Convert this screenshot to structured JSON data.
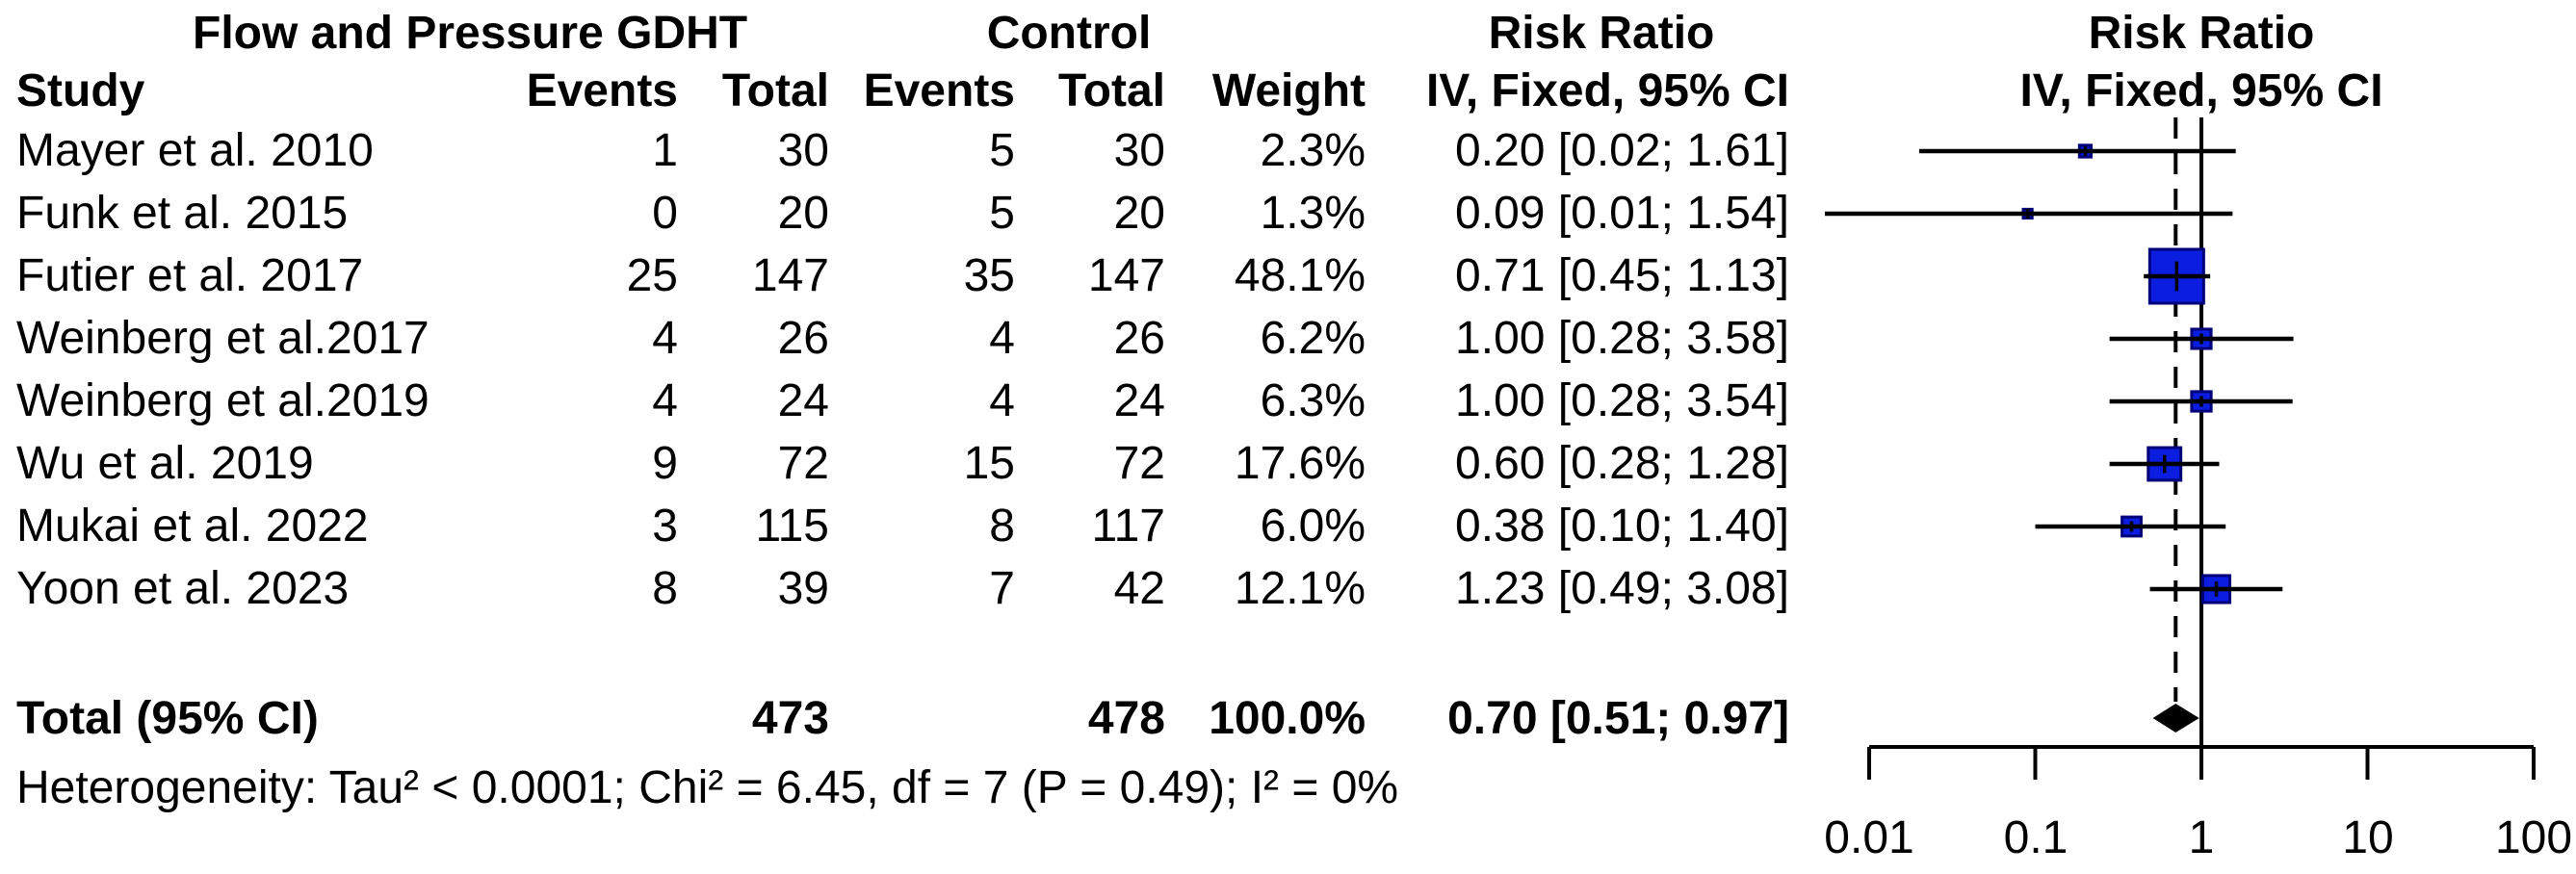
{
  "figure": {
    "columns": {
      "group1_header": "Flow and Pressure GDHT",
      "group2_header": "Control",
      "risk_ratio_header": "Risk Ratio",
      "risk_ratio_plot_header": "Risk Ratio",
      "study": "Study",
      "events1": "Events",
      "total1": "Total",
      "events2": "Events",
      "total2": "Total",
      "weight": "Weight",
      "effect": "IV, Fixed, 95% CI",
      "effect_plot": "IV, Fixed, 95% CI"
    },
    "total_row": {
      "label": "Total (95% CI)",
      "total1": "473",
      "total2": "478",
      "weight": "100.0%",
      "effect": "0.70 [0.51; 0.97]"
    },
    "heterogeneity": "Heterogeneity: Tau² < 0.0001; Chi² = 6.45, df = 7 (P = 0.49); I² = 0%"
  },
  "chart_data": {
    "type": "forest",
    "title": "Risk Ratio IV, Fixed, 95% CI",
    "x_scale": "log10",
    "x_ticks": [
      0.01,
      0.1,
      1,
      10,
      100
    ],
    "x_tick_labels": [
      "0.01",
      "0.1",
      "1",
      "10",
      "100"
    ],
    "null_line": 1,
    "legend_position": "none",
    "studies": [
      {
        "name": "Mayer et al. 2010",
        "events_gdht": 1,
        "total_gdht": 30,
        "events_control": 5,
        "total_control": 30,
        "weight_pct": 2.3,
        "weight_label": "2.3%",
        "rr": 0.2,
        "ci_low": 0.02,
        "ci_high": 1.61,
        "effect_label": "0.20 [0.02; 1.61]",
        "ci_clipped_left": false
      },
      {
        "name": "Funk et al. 2015",
        "events_gdht": 0,
        "total_gdht": 20,
        "events_control": 5,
        "total_control": 20,
        "weight_pct": 1.3,
        "weight_label": "1.3%",
        "rr": 0.09,
        "ci_low": 0.01,
        "ci_high": 1.54,
        "effect_label": "0.09 [0.01; 1.54]",
        "ci_clipped_left": true
      },
      {
        "name": "Futier et al. 2017",
        "events_gdht": 25,
        "total_gdht": 147,
        "events_control": 35,
        "total_control": 147,
        "weight_pct": 48.1,
        "weight_label": "48.1%",
        "rr": 0.71,
        "ci_low": 0.45,
        "ci_high": 1.13,
        "effect_label": "0.71 [0.45; 1.13]",
        "ci_clipped_left": false
      },
      {
        "name": "Weinberg et al.2017",
        "events_gdht": 4,
        "total_gdht": 26,
        "events_control": 4,
        "total_control": 26,
        "weight_pct": 6.2,
        "weight_label": "6.2%",
        "rr": 1.0,
        "ci_low": 0.28,
        "ci_high": 3.58,
        "effect_label": "1.00 [0.28; 3.58]",
        "ci_clipped_left": false
      },
      {
        "name": "Weinberg et al.2019",
        "events_gdht": 4,
        "total_gdht": 24,
        "events_control": 4,
        "total_control": 24,
        "weight_pct": 6.3,
        "weight_label": "6.3%",
        "rr": 1.0,
        "ci_low": 0.28,
        "ci_high": 3.54,
        "effect_label": "1.00 [0.28; 3.54]",
        "ci_clipped_left": false
      },
      {
        "name": "Wu et al. 2019",
        "events_gdht": 9,
        "total_gdht": 72,
        "events_control": 15,
        "total_control": 72,
        "weight_pct": 17.6,
        "weight_label": "17.6%",
        "rr": 0.6,
        "ci_low": 0.28,
        "ci_high": 1.28,
        "effect_label": "0.60 [0.28; 1.28]",
        "ci_clipped_left": false
      },
      {
        "name": "Mukai et al. 2022",
        "events_gdht": 3,
        "total_gdht": 115,
        "events_control": 8,
        "total_control": 117,
        "weight_pct": 6.0,
        "weight_label": "6.0%",
        "rr": 0.38,
        "ci_low": 0.1,
        "ci_high": 1.4,
        "effect_label": "0.38 [0.10; 1.40]",
        "ci_clipped_left": false
      },
      {
        "name": "Yoon et al. 2023",
        "events_gdht": 8,
        "total_gdht": 39,
        "events_control": 7,
        "total_control": 42,
        "weight_pct": 12.1,
        "weight_label": "12.1%",
        "rr": 1.23,
        "ci_low": 0.49,
        "ci_high": 3.08,
        "effect_label": "1.23 [0.49; 3.08]",
        "ci_clipped_left": false
      }
    ],
    "pooled": {
      "rr": 0.7,
      "ci_low": 0.51,
      "ci_high": 0.97,
      "weight_pct": 100.0
    },
    "colors": {
      "square_fill": "#0B1EE0",
      "square_border": "#000078",
      "line": "#000000",
      "diamond": "#000000"
    }
  }
}
